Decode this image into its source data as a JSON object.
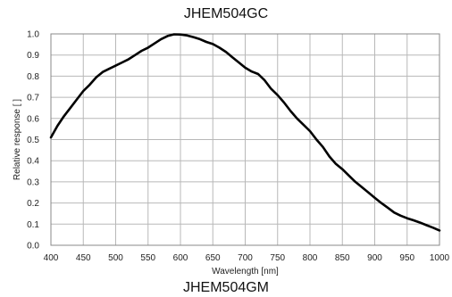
{
  "header": {
    "title": "JHEM504GC"
  },
  "footer": {
    "title": "JHEM504GM"
  },
  "chart_data": {
    "type": "line",
    "xlabel": "Wavelength [nm]",
    "ylabel": "Relative response [ ]",
    "xlim": [
      400,
      1000
    ],
    "ylim": [
      0,
      1
    ],
    "x_ticks": [
      "400",
      "450",
      "500",
      "550",
      "600",
      "650",
      "700",
      "750",
      "800",
      "850",
      "900",
      "950",
      "1000"
    ],
    "y_ticks": [
      "0.0",
      "0.1",
      "0.2",
      "0.3",
      "0.4",
      "0.5",
      "0.6",
      "0.7",
      "0.8",
      "0.9",
      "1.0"
    ],
    "grid": true,
    "series": [
      {
        "color": "#000000",
        "x": [
          400,
          410,
          420,
          430,
          440,
          450,
          460,
          470,
          480,
          490,
          500,
          510,
          520,
          530,
          540,
          550,
          560,
          570,
          580,
          590,
          600,
          610,
          620,
          630,
          640,
          650,
          660,
          670,
          680,
          690,
          700,
          710,
          720,
          730,
          740,
          750,
          760,
          770,
          780,
          790,
          800,
          810,
          820,
          830,
          840,
          850,
          860,
          870,
          880,
          890,
          900,
          910,
          920,
          930,
          940,
          950,
          960,
          970,
          980,
          990,
          1000
        ],
        "y": [
          0.51,
          0.565,
          0.61,
          0.65,
          0.69,
          0.73,
          0.76,
          0.795,
          0.82,
          0.835,
          0.85,
          0.865,
          0.88,
          0.9,
          0.92,
          0.935,
          0.955,
          0.975,
          0.99,
          0.998,
          0.997,
          0.993,
          0.985,
          0.975,
          0.962,
          0.952,
          0.935,
          0.915,
          0.89,
          0.865,
          0.84,
          0.822,
          0.81,
          0.78,
          0.74,
          0.71,
          0.675,
          0.635,
          0.6,
          0.57,
          0.54,
          0.5,
          0.465,
          0.42,
          0.385,
          0.36,
          0.33,
          0.3,
          0.275,
          0.25,
          0.225,
          0.2,
          0.178,
          0.155,
          0.14,
          0.128,
          0.118,
          0.107,
          0.095,
          0.083,
          0.07
        ]
      }
    ]
  }
}
